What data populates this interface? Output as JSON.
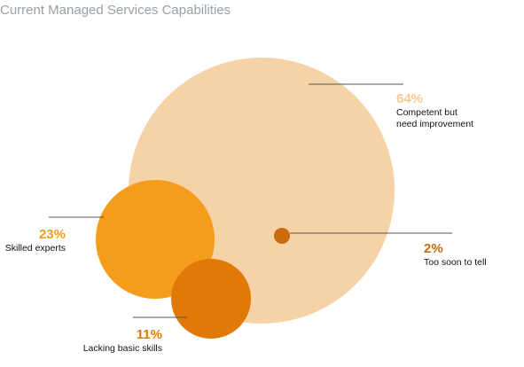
{
  "chart_data": {
    "type": "bubble",
    "title": "Current Managed Services Capabilities",
    "unit": "%",
    "series": [
      {
        "label": "Competent but need improvement",
        "label_lines": [
          "Competent but",
          "need improvement"
        ],
        "value": 64,
        "value_text": "64%",
        "color": "#f6d2a7",
        "text_color": "#f6c895"
      },
      {
        "label": "Skilled experts",
        "label_lines": [
          "Skilled experts"
        ],
        "value": 23,
        "value_text": "23%",
        "color": "#f59c1d",
        "text_color": "#f59c1d"
      },
      {
        "label": "Lacking basic skills",
        "label_lines": [
          "Lacking basic skills"
        ],
        "value": 11,
        "value_text": "11%",
        "color": "#e07906",
        "text_color": "#e07906"
      },
      {
        "label": "Too soon to tell",
        "label_lines": [
          "Too soon to tell"
        ],
        "value": 2,
        "value_text": "2%",
        "color": "#c96a0b",
        "text_color": "#c96a0b"
      }
    ],
    "leader_line_color": "#555555"
  }
}
